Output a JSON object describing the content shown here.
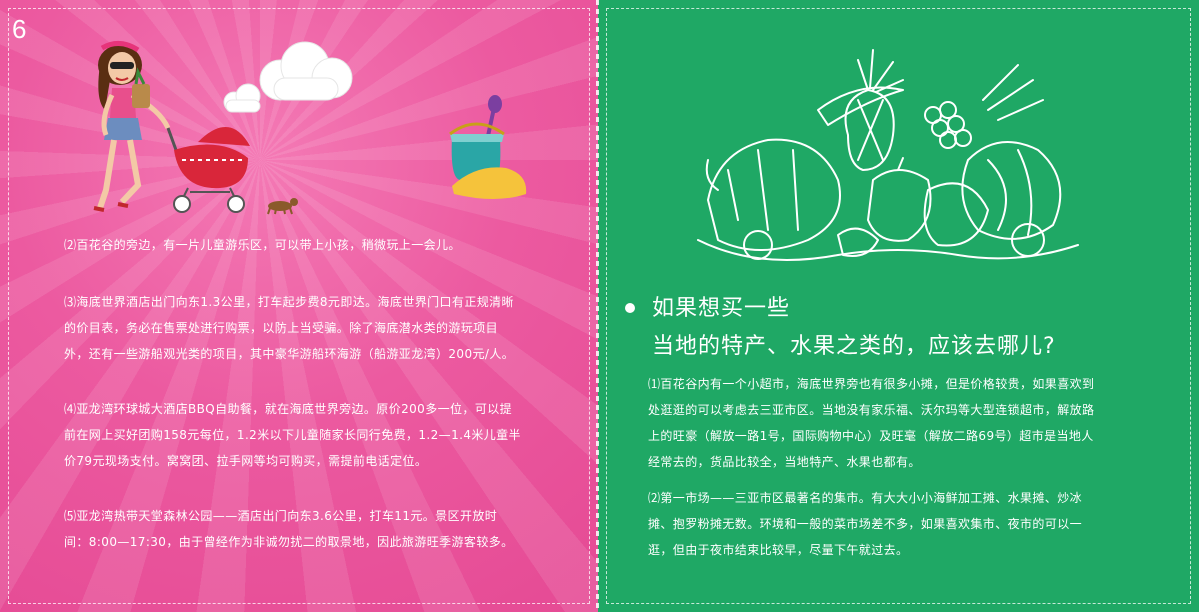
{
  "page_number": "6",
  "left": {
    "paragraphs": [
      {
        "lines": [
          "⑵百花谷的旁边，有一片儿童游乐区，可以带上小孩，稍微玩上一会儿。"
        ]
      },
      {
        "lines": [
          "⑶海底世界酒店出门向东1.3公里，打车起步费8元即达。海底世界门口有正规清晰",
          "的价目表，务必在售票处进行购票，以防上当受骗。除了海底潜水类的游玩项目",
          "外，还有一些游船观光类的项目，其中豪华游船环海游（船游亚龙湾）200元/人。"
        ]
      },
      {
        "lines": [
          "⑷亚龙湾环球城大酒店BBQ自助餐，就在海底世界旁边。原价200多一位，可以提",
          "前在网上买好团购158元每位，1.2米以下儿童随家长同行免费，1.2—1.4米儿童半",
          "价79元现场支付。窝窝团、拉手网等均可购买，需提前电话定位。"
        ]
      },
      {
        "lines": [
          "⑸亚龙湾热带天堂森林公园——酒店出门向东3.6公里，打车11元。景区开放时",
          "间：8:00—17:30，由于曾经作为非诚勿扰二的取景地，因此旅游旺季游客较多。"
        ]
      }
    ]
  },
  "right": {
    "heading_line1": "如果想买一些",
    "heading_line2": "当地的特产、水果之类的，应该去哪儿?",
    "paragraphs": [
      {
        "lines": [
          "⑴百花谷内有一个小超市，海底世界旁也有很多小摊，但是价格较贵，如果喜欢到",
          "处逛逛的可以考虑去三亚市区。当地没有家乐福、沃尔玛等大型连锁超市，解放路",
          "上的旺豪（解放一路1号，国际购物中心）及旺毫（解放二路69号）超市是当地人",
          "经常去的，货品比较全，当地特产、水果也都有。"
        ]
      },
      {
        "lines": [
          "⑵第一市场——三亚市区最著名的集市。有大大小小海鲜加工摊、水果摊、炒冰",
          "摊、抱罗粉摊无数。环境和一般的菜市场差不多，如果喜欢集市、夜市的可以一",
          "逛，但由于夜市结束比较早，尽量下午就过去。"
        ]
      }
    ]
  },
  "colors": {
    "left_bg": "#e54a94",
    "right_bg": "#1fa865",
    "text": "#ffffff"
  }
}
